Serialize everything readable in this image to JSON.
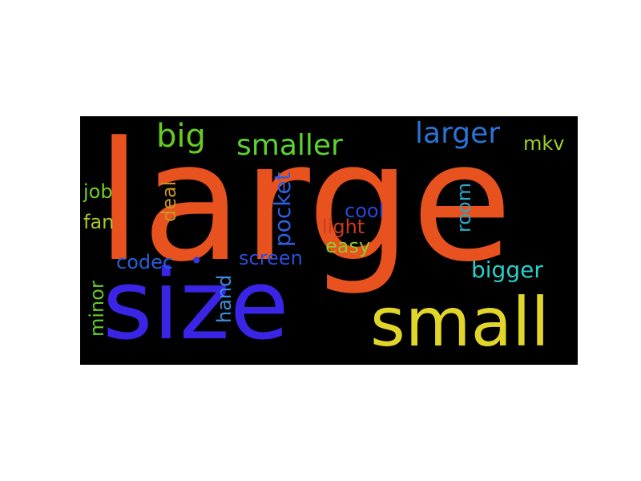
{
  "word_cloud": {
    "background": "#000000",
    "words": [
      {
        "text": "large",
        "color": "#e8521f"
      },
      {
        "text": "size",
        "color": "#3a25e6"
      },
      {
        "text": "small",
        "color": "#e2d52a"
      },
      {
        "text": "big",
        "color": "#66cc22"
      },
      {
        "text": "smaller",
        "color": "#5ad42e"
      },
      {
        "text": "larger",
        "color": "#2a73d6"
      },
      {
        "text": "mkv",
        "color": "#9ccf2a"
      },
      {
        "text": "job",
        "color": "#6fcf2a"
      },
      {
        "text": "deal",
        "color": "#c8951f"
      },
      {
        "text": "fan",
        "color": "#a8c825"
      },
      {
        "text": "pocket",
        "color": "#2f5ee0"
      },
      {
        "text": "cool",
        "color": "#2c45d8"
      },
      {
        "text": "light",
        "color": "#cf3a1e"
      },
      {
        "text": "room",
        "color": "#2aa6c8"
      },
      {
        "text": "easy",
        "color": "#93c82a"
      },
      {
        "text": "codec",
        "color": "#2a5fd6"
      },
      {
        "text": "•",
        "color": "#3536d8"
      },
      {
        "text": "screen",
        "color": "#2a4fd8"
      },
      {
        "text": "bigger",
        "color": "#2ad0c8"
      },
      {
        "text": "minor",
        "color": "#62c82a"
      },
      {
        "text": "hand",
        "color": "#3a8fe0"
      }
    ]
  }
}
